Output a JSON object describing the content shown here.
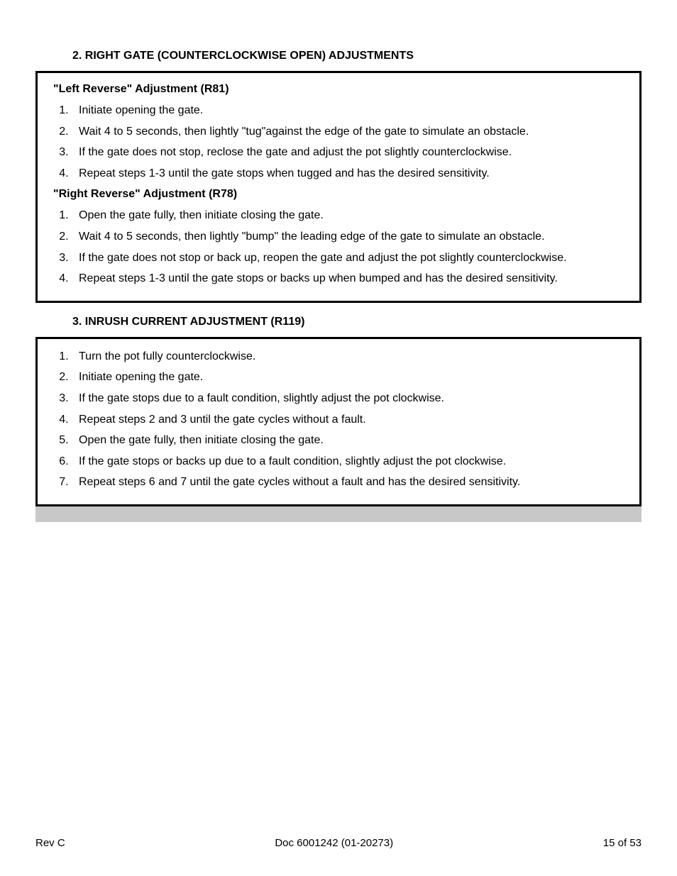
{
  "section2": {
    "heading": "2.  RIGHT GATE (COUNTERCLOCKWISE OPEN) ADJUSTMENTS",
    "box": {
      "sub1": {
        "title": "\"Left Reverse\" Adjustment (R81)",
        "items": [
          "Initiate opening the gate.",
          "Wait 4 to 5 seconds, then lightly \"tug\"against the edge of the gate to simulate an obstacle.",
          "If the gate does not stop, reclose the gate and adjust the pot slightly counterclockwise.",
          "Repeat steps 1-3 until the gate stops when tugged and has the desired sensitivity."
        ]
      },
      "sub2": {
        "title": "\"Right Reverse\" Adjustment (R78)",
        "items": [
          "Open the gate fully, then initiate closing the gate.",
          "Wait 4 to 5 seconds, then lightly \"bump\" the leading edge of the gate to simulate an obstacle.",
          "If the gate does not stop or back up, reopen the gate and adjust the pot slightly counterclockwise.",
          "Repeat steps 1-3 until the gate stops or backs up when bumped and has the desired sensitivity."
        ]
      }
    }
  },
  "section3": {
    "heading": "3.  INRUSH CURRENT ADJUSTMENT (R119)",
    "box": {
      "items": [
        "Turn the pot fully counterclockwise.",
        "Initiate opening the gate.",
        "If the gate stops due to a fault condition, slightly adjust the pot clockwise.",
        "Repeat steps 2 and 3 until the gate cycles without a fault.",
        "Open the gate fully, then initiate closing the gate.",
        "If the gate stops or backs up due to a fault condition, slightly adjust the pot clockwise.",
        "Repeat steps 6 and 7 until the gate cycles without a fault and has the desired sensitivity."
      ]
    }
  },
  "footer": {
    "left": "Rev C",
    "center": "Doc 6001242 (01-20273)",
    "right": "15 of 53"
  }
}
